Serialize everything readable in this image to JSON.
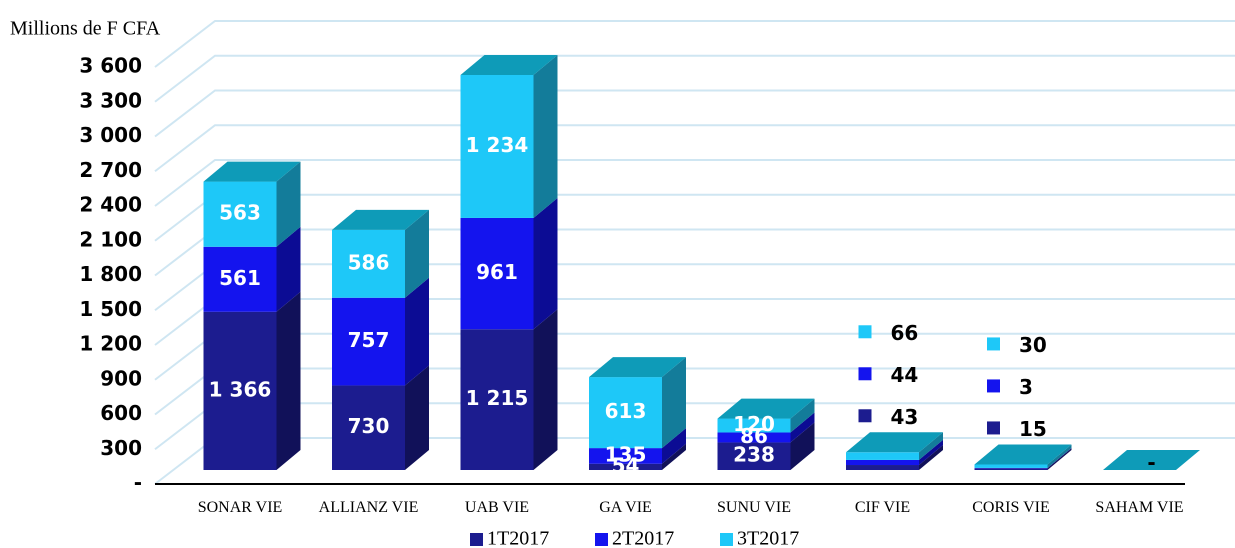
{
  "chart_data": {
    "type": "bar3d_stacked",
    "y_axis_label": "Millions de F CFA",
    "categories": [
      "SONAR VIE",
      "ALLIANZ VIE",
      "UAB VIE",
      "GA VIE",
      "SUNU VIE",
      "CIF VIE",
      "CORIS VIE",
      "SAHAM VIE"
    ],
    "series": [
      {
        "name": "1T2017",
        "color": "#1c1c8f",
        "values": [
          1366,
          730,
          1215,
          54,
          238,
          43,
          15,
          0
        ],
        "value_labels": [
          "1 366",
          "730",
          "1 215",
          "54",
          "238",
          "43",
          "15",
          "-"
        ]
      },
      {
        "name": "2T2017",
        "color": "#1414ee",
        "values": [
          561,
          757,
          961,
          135,
          86,
          44,
          3,
          0
        ],
        "value_labels": [
          "561",
          "757",
          "961",
          "135",
          "86",
          "44",
          "3",
          null
        ]
      },
      {
        "name": "3T2017",
        "color": "#1ec8f8",
        "values": [
          563,
          586,
          1234,
          613,
          120,
          66,
          30,
          0
        ],
        "value_labels": [
          "563",
          "586",
          "1 234",
          "613",
          "120",
          "66",
          "30",
          null
        ]
      }
    ],
    "top_color": "#0e9bb8",
    "ylim": [
      0,
      3600
    ],
    "yticks": [
      {
        "value": 0,
        "label": "-"
      },
      300,
      600,
      900,
      {
        "value": 1200,
        "label": "1 200"
      },
      {
        "value": 1500,
        "label": "1 500"
      },
      {
        "value": 1800,
        "label": "1 800"
      },
      {
        "value": 2100,
        "label": "2 100"
      },
      {
        "value": 2400,
        "label": "2 400"
      },
      {
        "value": 2700,
        "label": "2 700"
      },
      {
        "value": 3000,
        "label": "3 000"
      },
      {
        "value": 3300,
        "label": "3 300"
      },
      {
        "value": 3600,
        "label": "3 600"
      }
    ],
    "grid": true
  }
}
